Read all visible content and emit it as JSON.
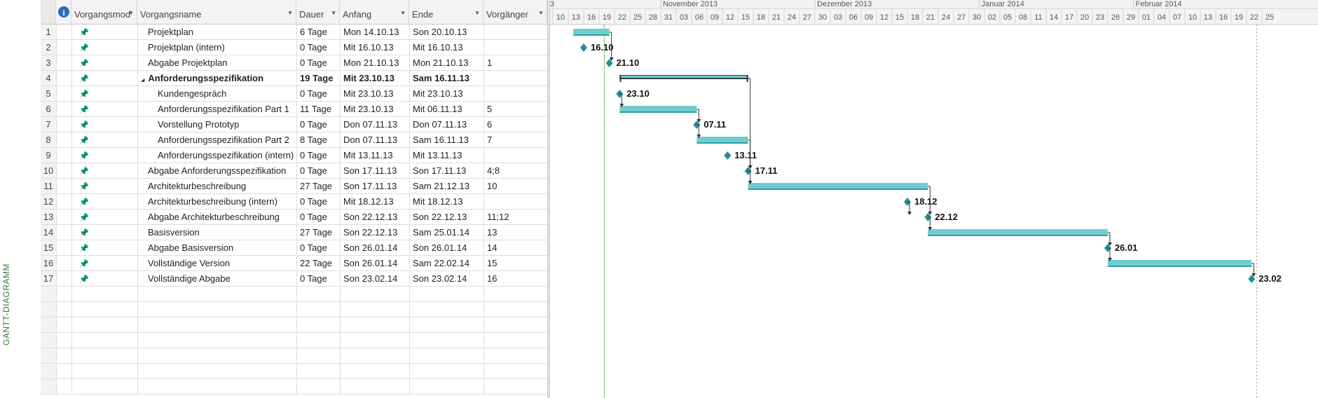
{
  "side_label": "GANTT-DIAGRAMM",
  "colors": {
    "bar": "#6fcdd0",
    "bar_edge": "#2a9fa7",
    "milestone": "#1f8f99",
    "summary": "#333333",
    "today": "#79c17a"
  },
  "columns": {
    "info_icon": "info-icon",
    "mode": "Vorgangsmod",
    "name": "Vorgangsname",
    "duration": "Dauer",
    "start": "Anfang",
    "end": "Ende",
    "predecessors": "Vorgänger"
  },
  "tasks": [
    {
      "id": "1",
      "name": "Projektplan",
      "duration": "6 Tage",
      "start": "Mon 14.10.13",
      "end": "Son 20.10.13",
      "pred": "",
      "indent": 1,
      "bold": false
    },
    {
      "id": "2",
      "name": "Projektplan (intern)",
      "duration": "0 Tage",
      "start": "Mit 16.10.13",
      "end": "Mit 16.10.13",
      "pred": "",
      "indent": 1,
      "bold": false
    },
    {
      "id": "3",
      "name": "Abgabe Projektplan",
      "duration": "0 Tage",
      "start": "Mon 21.10.13",
      "end": "Mon 21.10.13",
      "pred": "1",
      "indent": 1,
      "bold": false
    },
    {
      "id": "4",
      "name": "Anforderungsspezifikation",
      "duration": "19 Tage",
      "start": "Mit 23.10.13",
      "end": "Sam 16.11.13",
      "pred": "",
      "indent": 1,
      "bold": true,
      "summary": true
    },
    {
      "id": "5",
      "name": "Kundengespräch",
      "duration": "0 Tage",
      "start": "Mit 23.10.13",
      "end": "Mit 23.10.13",
      "pred": "",
      "indent": 2,
      "bold": false
    },
    {
      "id": "6",
      "name": "Anforderungsspezifikation Part 1",
      "duration": "11 Tage",
      "start": "Mit 23.10.13",
      "end": "Mit 06.11.13",
      "pred": "5",
      "indent": 2,
      "bold": false
    },
    {
      "id": "7",
      "name": "Vorstellung Prototyp",
      "duration": "0 Tage",
      "start": "Don 07.11.13",
      "end": "Don 07.11.13",
      "pred": "6",
      "indent": 2,
      "bold": false
    },
    {
      "id": "8",
      "name": "Anforderungsspezifikation Part 2",
      "duration": "8 Tage",
      "start": "Don 07.11.13",
      "end": "Sam 16.11.13",
      "pred": "7",
      "indent": 2,
      "bold": false
    },
    {
      "id": "9",
      "name": "Anforderungsspezifikation (intern)",
      "duration": "0 Tage",
      "start": "Mit 13.11.13",
      "end": "Mit 13.11.13",
      "pred": "",
      "indent": 2,
      "bold": false
    },
    {
      "id": "10",
      "name": "Abgabe Anforderungsspezifikation",
      "duration": "0 Tage",
      "start": "Son 17.11.13",
      "end": "Son 17.11.13",
      "pred": "4;8",
      "indent": 1,
      "bold": false
    },
    {
      "id": "11",
      "name": "Architekturbeschreibung",
      "duration": "27 Tage",
      "start": "Son 17.11.13",
      "end": "Sam 21.12.13",
      "pred": "10",
      "indent": 1,
      "bold": false
    },
    {
      "id": "12",
      "name": "Architekturbeschreibung (intern)",
      "duration": "0 Tage",
      "start": "Mit 18.12.13",
      "end": "Mit 18.12.13",
      "pred": "",
      "indent": 1,
      "bold": false
    },
    {
      "id": "13",
      "name": "Abgabe Architekturbeschreibung",
      "duration": "0 Tage",
      "start": "Son 22.12.13",
      "end": "Son 22.12.13",
      "pred": "11;12",
      "indent": 1,
      "bold": false
    },
    {
      "id": "14",
      "name": "Basisversion",
      "duration": "27 Tage",
      "start": "Son 22.12.13",
      "end": "Sam 25.01.14",
      "pred": "13",
      "indent": 1,
      "bold": false
    },
    {
      "id": "15",
      "name": "Abgabe Basisversion",
      "duration": "0 Tage",
      "start": "Son 26.01.14",
      "end": "Son 26.01.14",
      "pred": "14",
      "indent": 1,
      "bold": false
    },
    {
      "id": "16",
      "name": "Vollständige Version",
      "duration": "22 Tage",
      "start": "Son 26.01.14",
      "end": "Sam 22.02.14",
      "pred": "15",
      "indent": 1,
      "bold": false
    },
    {
      "id": "17",
      "name": "Vollständige Abgabe",
      "duration": "0 Tage",
      "start": "Son 23.02.14",
      "end": "Son 23.02.14",
      "pred": "16",
      "indent": 1,
      "bold": false
    }
  ],
  "timeline": {
    "months": [
      {
        "label": "3",
        "start": "2013-10-07"
      },
      {
        "label": "November 2013",
        "start": "2013-10-31"
      },
      {
        "label": "Dezember 2013",
        "start": "2013-11-30"
      },
      {
        "label": "Januar 2014",
        "start": "2014-01-01"
      },
      {
        "label": "Februar 2014",
        "start": "2014-01-31"
      }
    ],
    "days": [
      "10",
      "13",
      "16",
      "19",
      "22",
      "25",
      "28",
      "31",
      "03",
      "06",
      "09",
      "12",
      "15",
      "18",
      "21",
      "24",
      "27",
      "30",
      "03",
      "06",
      "09",
      "12",
      "15",
      "18",
      "21",
      "24",
      "27",
      "30",
      "02",
      "05",
      "08",
      "11",
      "14",
      "17",
      "20",
      "23",
      "26",
      "29",
      "01",
      "04",
      "07",
      "10",
      "13",
      "16",
      "19",
      "22",
      "25"
    ],
    "first_day": "2013-10-10",
    "today": "2013-10-20",
    "status_date": "2014-02-24"
  },
  "chart_data": {
    "type": "gantt",
    "bars": [
      {
        "task": "1",
        "start": "2013-10-14",
        "end": "2013-10-20"
      },
      {
        "task": "4",
        "start": "2013-10-23",
        "end": "2013-11-16",
        "summary": true
      },
      {
        "task": "6",
        "start": "2013-10-23",
        "end": "2013-11-06"
      },
      {
        "task": "8",
        "start": "2013-11-07",
        "end": "2013-11-16"
      },
      {
        "task": "11",
        "start": "2013-11-17",
        "end": "2013-12-21"
      },
      {
        "task": "14",
        "start": "2013-12-22",
        "end": "2014-01-25"
      },
      {
        "task": "16",
        "start": "2014-01-26",
        "end": "2014-02-22"
      }
    ],
    "milestones": [
      {
        "task": "2",
        "date": "2013-10-16",
        "label": "16.10"
      },
      {
        "task": "3",
        "date": "2013-10-21",
        "label": "21.10"
      },
      {
        "task": "5",
        "date": "2013-10-23",
        "label": "23.10"
      },
      {
        "task": "7",
        "date": "2013-11-07",
        "label": "07.11"
      },
      {
        "task": "9",
        "date": "2013-11-13",
        "label": "13.11"
      },
      {
        "task": "10",
        "date": "2013-11-17",
        "label": "17.11"
      },
      {
        "task": "12",
        "date": "2013-12-18",
        "label": "18.12"
      },
      {
        "task": "13",
        "date": "2013-12-22",
        "label": "22.12"
      },
      {
        "task": "15",
        "date": "2014-01-26",
        "label": "26.01"
      },
      {
        "task": "17",
        "date": "2014-02-23",
        "label": "23.02"
      }
    ]
  }
}
